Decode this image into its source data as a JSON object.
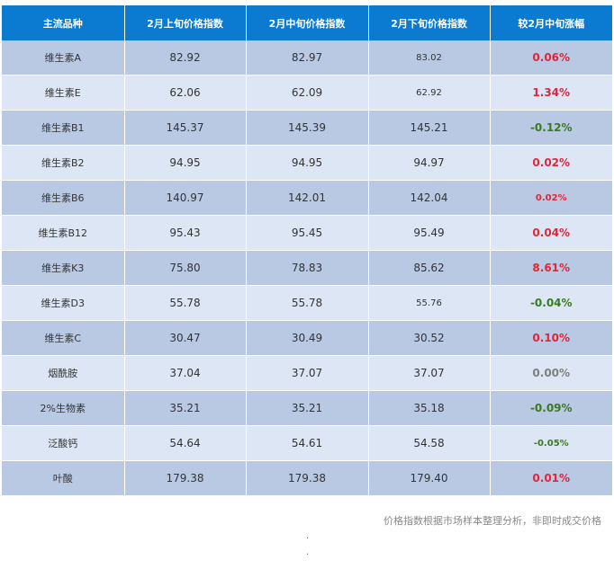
{
  "headers": [
    "主流品种",
    "2月上旬价格指数",
    "2月中旬价格指数",
    "2月下旬价格指数",
    "较2月中旬涨幅"
  ],
  "rows": [
    {
      "name": "维生素A",
      "early": "82.92",
      "mid": "82.97",
      "late": "83.02",
      "change": "0.06%",
      "change_color": "#e0263a"
    },
    {
      "name": "维生素E",
      "early": "62.06",
      "mid": "62.09",
      "late": "62.92",
      "change": "1.34%",
      "change_color": "#e0263a"
    },
    {
      "name": "维生素B1",
      "early": "145.37",
      "mid": "145.39",
      "late": "145.21",
      "change": "-0.12%",
      "change_color": "#3a7a1e"
    },
    {
      "name": "维生素B2",
      "early": "94.95",
      "mid": "94.95",
      "late": "94.97",
      "change": "0.02%",
      "change_color": "#e0263a"
    },
    {
      "name": "维生素B6",
      "early": "140.97",
      "mid": "142.01",
      "late": "142.04",
      "change": "0.02%",
      "change_color": "#e0263a"
    },
    {
      "name": "维生素B12",
      "early": "95.43",
      "mid": "95.45",
      "late": "95.49",
      "change": "0.04%",
      "change_color": "#e0263a"
    },
    {
      "name": "维生素K3",
      "early": "75.80",
      "mid": "78.83",
      "late": "85.62",
      "change": "8.61%",
      "change_color": "#e0263a"
    },
    {
      "name": "维生素D3",
      "early": "55.78",
      "mid": "55.78",
      "late": "55.76",
      "change": "-0.04%",
      "change_color": "#3a7a1e"
    },
    {
      "name": "维生素C",
      "early": "30.47",
      "mid": "30.49",
      "late": "30.52",
      "change": "0.10%",
      "change_color": "#e0263a"
    },
    {
      "name": "烟酰胺",
      "early": "37.04",
      "mid": "37.07",
      "late": "37.07",
      "change": "0.00%",
      "change_color": "#7f7f7f"
    },
    {
      "name": "2%生物素",
      "early": "35.21",
      "mid": "35.21",
      "late": "35.18",
      "change": "-0.09%",
      "change_color": "#3a7a1e"
    },
    {
      "name": "泛酸钙",
      "early": "54.64",
      "mid": "54.61",
      "late": "54.58",
      "change": "-0.05%",
      "change_color": "#3a7a1e"
    },
    {
      "name": "叶酸",
      "early": "179.38",
      "mid": "179.38",
      "late": "179.40",
      "change": "0.01%",
      "change_color": "#e0263a"
    }
  ],
  "footnote": "价格指数根据市场样本整理分析，非即时成交价格",
  "dots": [
    "·",
    "·"
  ]
}
